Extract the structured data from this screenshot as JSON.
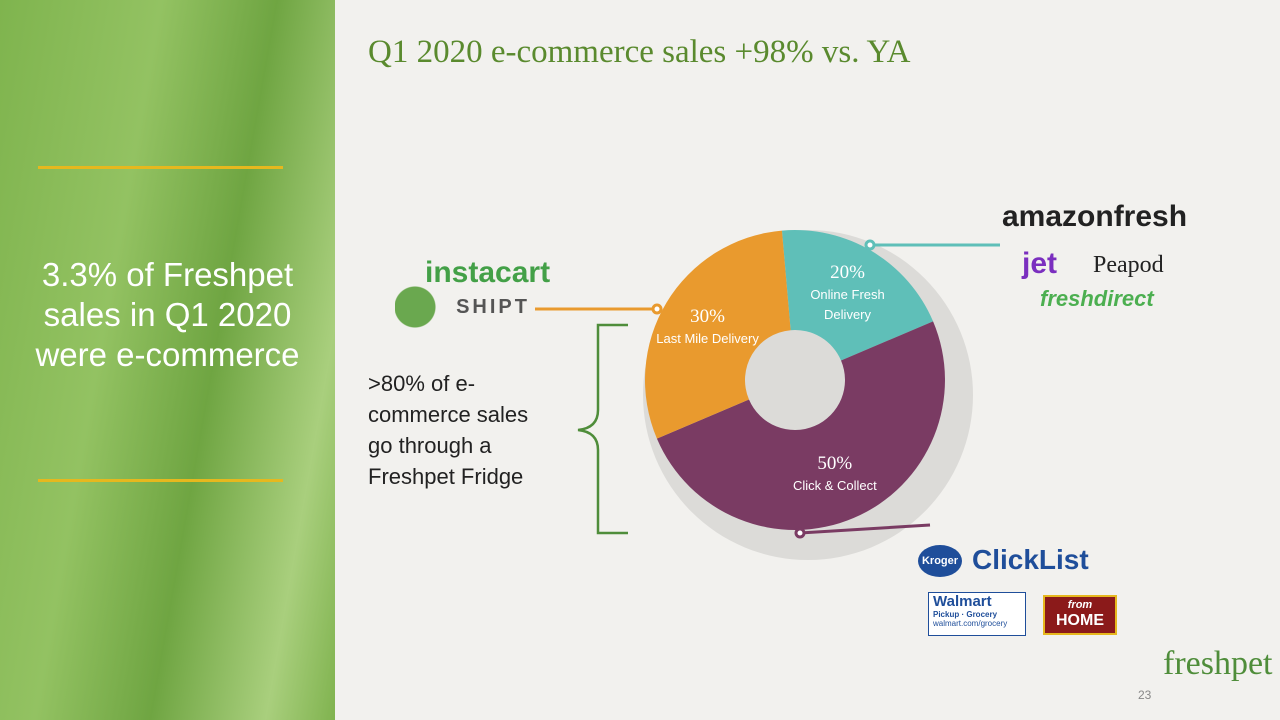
{
  "slide": {
    "sidebar_text": "3.3% of Freshpet sales in Q1 2020 were e-commerce",
    "note": ">80% of e-commerce sales go through a Freshpet Fridge",
    "page_number": "23",
    "brand": "freshpet"
  },
  "partners": {
    "last_mile": [
      "instacart",
      "SHIPT"
    ],
    "online_fresh": [
      "amazonfresh",
      "jet",
      "Peapod",
      "freshdirect"
    ],
    "click_collect": [
      "Kroger",
      "ClickList",
      "Walmart",
      "Pickup · Grocery",
      "walmart.com/grocery",
      "from",
      "HOME"
    ]
  },
  "chart_data": {
    "type": "donut",
    "title": "Q1 2020 e-commerce sales +98% vs. YA",
    "categories": [
      "Online Fresh Delivery",
      "Click & Collect",
      "Last Mile Delivery"
    ],
    "values": [
      20,
      50,
      30
    ],
    "value_labels": [
      "20%",
      "50%",
      "30%"
    ],
    "colors": [
      "#5fbfb8",
      "#7a3b63",
      "#e99a2e"
    ]
  }
}
